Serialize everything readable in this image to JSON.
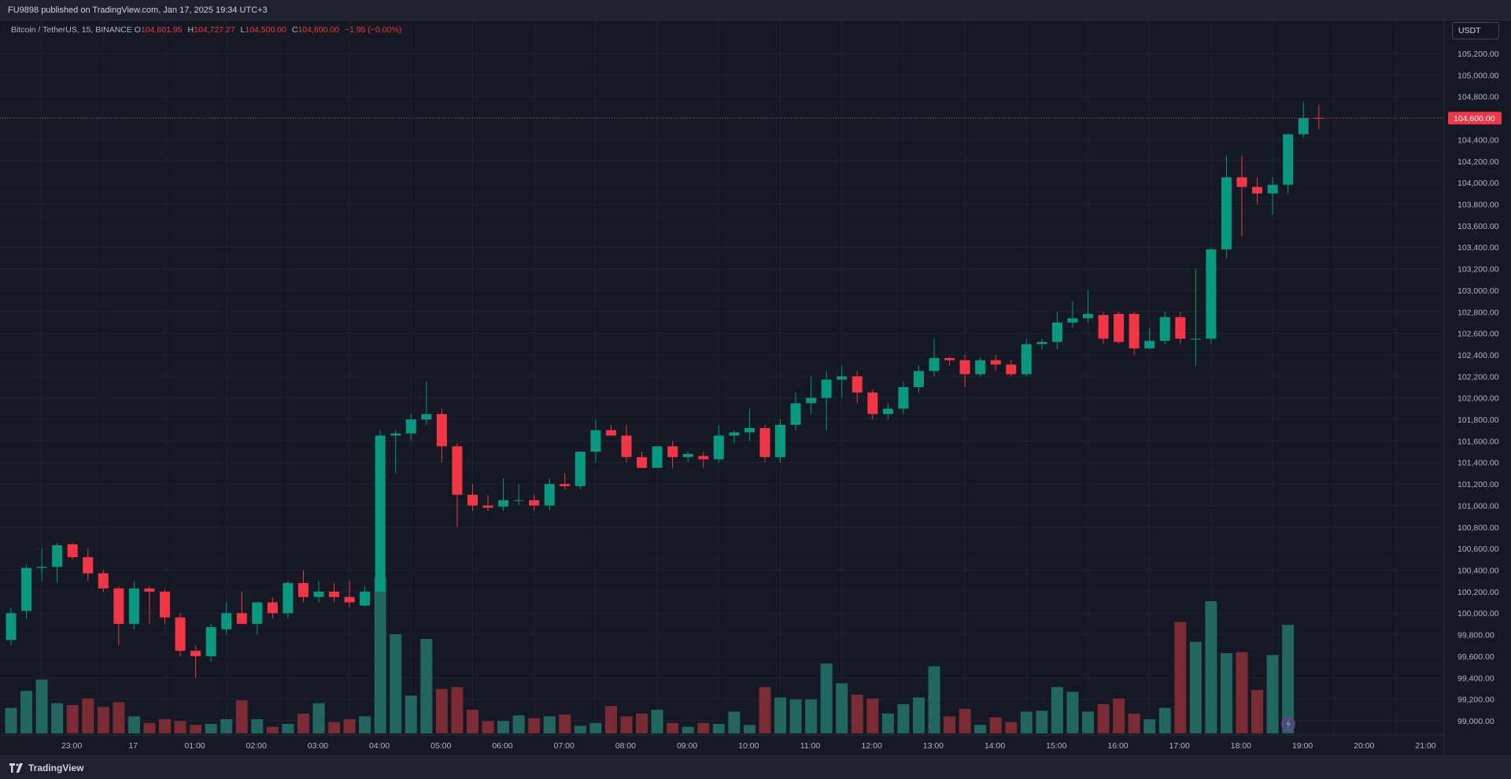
{
  "header": {
    "published_text": "FU9898 published on TradingView.com, Jan 17, 2025 19:34 UTC+3"
  },
  "legend": {
    "symbol": "Bitcoin / TetherUS, 15, BINANCE",
    "o_label": "O",
    "o_value": "104,601.95",
    "h_label": "H",
    "h_value": "104,727.27",
    "l_label": "L",
    "l_value": "104,500.00",
    "c_label": "C",
    "c_value": "104,600.00",
    "change": "−1.95 (−0.00%)"
  },
  "currency": "USDT",
  "footer": {
    "brand": "TradingView"
  },
  "current_price_label": "104,600.00",
  "colors": {
    "up": "#089981",
    "down": "#f23645",
    "volume_up": "#22675f",
    "volume_down": "#7a2b33"
  },
  "chart_data": {
    "type": "candlestick",
    "price_axis": {
      "min": 99000,
      "max": 105200,
      "step": 200,
      "labels": [
        "105,200.00",
        "105,000.00",
        "104,800.00",
        "104,600.00",
        "104,400.00",
        "104,200.00",
        "104,000.00",
        "103,800.00",
        "103,600.00",
        "103,400.00",
        "103,200.00",
        "103,000.00",
        "102,800.00",
        "102,600.00",
        "102,400.00",
        "102,200.00",
        "102,000.00",
        "101,800.00",
        "101,600.00",
        "101,400.00",
        "101,200.00",
        "101,000.00",
        "100,800.00",
        "100,600.00",
        "100,400.00",
        "100,200.00",
        "100,000.00",
        "99,800.00",
        "99,600.00",
        "99,400.00",
        "99,200.00",
        "99,000.00"
      ]
    },
    "time_axis": {
      "labels": [
        "23:00",
        "17",
        "01:00",
        "02:00",
        "03:00",
        "04:00",
        "05:00",
        "06:00",
        "07:00",
        "08:00",
        "09:00",
        "10:00",
        "11:00",
        "12:00",
        "13:00",
        "14:00",
        "15:00",
        "16:00",
        "17:00",
        "18:00",
        "19:00",
        "20:00",
        "21:00"
      ],
      "label_candle_index": [
        2,
        6,
        10,
        14,
        18,
        22,
        26,
        30,
        34,
        38,
        42,
        46,
        50,
        54,
        58,
        62,
        66,
        70,
        74,
        78,
        82,
        86,
        90
      ]
    },
    "last_price": 104600,
    "candles": [
      {
        "o": 99750,
        "h": 100050,
        "l": 99700,
        "c": 100000
      },
      {
        "o": 100020,
        "h": 100450,
        "l": 99950,
        "c": 100420
      },
      {
        "o": 100420,
        "h": 100600,
        "l": 100300,
        "c": 100430
      },
      {
        "o": 100430,
        "h": 100650,
        "l": 100280,
        "c": 100630
      },
      {
        "o": 100640,
        "h": 100650,
        "l": 100500,
        "c": 100520
      },
      {
        "o": 100520,
        "h": 100600,
        "l": 100300,
        "c": 100370
      },
      {
        "o": 100370,
        "h": 100400,
        "l": 100200,
        "c": 100230
      },
      {
        "o": 100230,
        "h": 100250,
        "l": 99700,
        "c": 99900
      },
      {
        "o": 99900,
        "h": 100300,
        "l": 99850,
        "c": 100230
      },
      {
        "o": 100230,
        "h": 100250,
        "l": 99900,
        "c": 100200
      },
      {
        "o": 100200,
        "h": 100220,
        "l": 99900,
        "c": 99960
      },
      {
        "o": 99960,
        "h": 100000,
        "l": 99600,
        "c": 99650
      },
      {
        "o": 99650,
        "h": 99700,
        "l": 99400,
        "c": 99600
      },
      {
        "o": 99600,
        "h": 99900,
        "l": 99550,
        "c": 99870
      },
      {
        "o": 99850,
        "h": 100100,
        "l": 99800,
        "c": 100000
      },
      {
        "o": 100000,
        "h": 100200,
        "l": 99950,
        "c": 99900
      },
      {
        "o": 99900,
        "h": 100100,
        "l": 99800,
        "c": 100100
      },
      {
        "o": 100100,
        "h": 100150,
        "l": 99950,
        "c": 100000
      },
      {
        "o": 100000,
        "h": 100300,
        "l": 99950,
        "c": 100280
      },
      {
        "o": 100280,
        "h": 100400,
        "l": 100100,
        "c": 100150
      },
      {
        "o": 100150,
        "h": 100300,
        "l": 100100,
        "c": 100200
      },
      {
        "o": 100200,
        "h": 100280,
        "l": 100100,
        "c": 100150
      },
      {
        "o": 100150,
        "h": 100300,
        "l": 100050,
        "c": 100100
      },
      {
        "o": 100070,
        "h": 100250,
        "l": 100060,
        "c": 100200
      },
      {
        "o": 100200,
        "h": 101700,
        "l": 100200,
        "c": 101650
      },
      {
        "o": 101650,
        "h": 101700,
        "l": 101300,
        "c": 101670
      },
      {
        "o": 101670,
        "h": 101850,
        "l": 101600,
        "c": 101800
      },
      {
        "o": 101800,
        "h": 102150,
        "l": 101750,
        "c": 101850
      },
      {
        "o": 101850,
        "h": 101900,
        "l": 101400,
        "c": 101550
      },
      {
        "o": 101550,
        "h": 101580,
        "l": 100800,
        "c": 101100
      },
      {
        "o": 101100,
        "h": 101200,
        "l": 100950,
        "c": 101000
      },
      {
        "o": 101000,
        "h": 101100,
        "l": 100950,
        "c": 100980
      },
      {
        "o": 100990,
        "h": 101250,
        "l": 100950,
        "c": 101050
      },
      {
        "o": 101050,
        "h": 101200,
        "l": 101000,
        "c": 101050
      },
      {
        "o": 101050,
        "h": 101100,
        "l": 100950,
        "c": 101000
      },
      {
        "o": 101000,
        "h": 101250,
        "l": 100950,
        "c": 101200
      },
      {
        "o": 101200,
        "h": 101300,
        "l": 101150,
        "c": 101180
      },
      {
        "o": 101180,
        "h": 101500,
        "l": 101150,
        "c": 101500
      },
      {
        "o": 101500,
        "h": 101800,
        "l": 101400,
        "c": 101700
      },
      {
        "o": 101700,
        "h": 101750,
        "l": 101650,
        "c": 101650
      },
      {
        "o": 101650,
        "h": 101750,
        "l": 101400,
        "c": 101450
      },
      {
        "o": 101450,
        "h": 101500,
        "l": 101350,
        "c": 101350
      },
      {
        "o": 101350,
        "h": 101550,
        "l": 101350,
        "c": 101550
      },
      {
        "o": 101550,
        "h": 101600,
        "l": 101350,
        "c": 101450
      },
      {
        "o": 101450,
        "h": 101500,
        "l": 101400,
        "c": 101480
      },
      {
        "o": 101460,
        "h": 101500,
        "l": 101350,
        "c": 101430
      },
      {
        "o": 101430,
        "h": 101750,
        "l": 101400,
        "c": 101650
      },
      {
        "o": 101650,
        "h": 101700,
        "l": 101580,
        "c": 101680
      },
      {
        "o": 101680,
        "h": 101900,
        "l": 101600,
        "c": 101720
      },
      {
        "o": 101720,
        "h": 101750,
        "l": 101400,
        "c": 101450
      },
      {
        "o": 101450,
        "h": 101800,
        "l": 101400,
        "c": 101750
      },
      {
        "o": 101750,
        "h": 102050,
        "l": 101700,
        "c": 101950
      },
      {
        "o": 101950,
        "h": 102200,
        "l": 101850,
        "c": 102000
      },
      {
        "o": 102000,
        "h": 102250,
        "l": 101700,
        "c": 102170
      },
      {
        "o": 102170,
        "h": 102300,
        "l": 102000,
        "c": 102200
      },
      {
        "o": 102200,
        "h": 102250,
        "l": 101950,
        "c": 102050
      },
      {
        "o": 102050,
        "h": 102080,
        "l": 101800,
        "c": 101850
      },
      {
        "o": 101850,
        "h": 101950,
        "l": 101800,
        "c": 101900
      },
      {
        "o": 101900,
        "h": 102150,
        "l": 101850,
        "c": 102100
      },
      {
        "o": 102100,
        "h": 102300,
        "l": 102050,
        "c": 102250
      },
      {
        "o": 102250,
        "h": 102550,
        "l": 102200,
        "c": 102370
      },
      {
        "o": 102370,
        "h": 102380,
        "l": 102300,
        "c": 102350
      },
      {
        "o": 102350,
        "h": 102400,
        "l": 102100,
        "c": 102220
      },
      {
        "o": 102220,
        "h": 102380,
        "l": 102200,
        "c": 102350
      },
      {
        "o": 102350,
        "h": 102400,
        "l": 102250,
        "c": 102310
      },
      {
        "o": 102310,
        "h": 102350,
        "l": 102200,
        "c": 102220
      },
      {
        "o": 102220,
        "h": 102550,
        "l": 102200,
        "c": 102500
      },
      {
        "o": 102500,
        "h": 102550,
        "l": 102450,
        "c": 102520
      },
      {
        "o": 102520,
        "h": 102800,
        "l": 102450,
        "c": 102700
      },
      {
        "o": 102700,
        "h": 102900,
        "l": 102650,
        "c": 102740
      },
      {
        "o": 102740,
        "h": 103000,
        "l": 102700,
        "c": 102780
      },
      {
        "o": 102770,
        "h": 102800,
        "l": 102500,
        "c": 102550
      },
      {
        "o": 102780,
        "h": 102800,
        "l": 102500,
        "c": 102520
      },
      {
        "o": 102780,
        "h": 102800,
        "l": 102400,
        "c": 102460
      },
      {
        "o": 102460,
        "h": 102650,
        "l": 102450,
        "c": 102530
      },
      {
        "o": 102530,
        "h": 102800,
        "l": 102500,
        "c": 102750
      },
      {
        "o": 102750,
        "h": 102800,
        "l": 102500,
        "c": 102550
      },
      {
        "o": 102550,
        "h": 103200,
        "l": 102300,
        "c": 102550
      },
      {
        "o": 102550,
        "h": 103400,
        "l": 102500,
        "c": 103380
      },
      {
        "o": 103380,
        "h": 104250,
        "l": 103300,
        "c": 104050
      },
      {
        "o": 104050,
        "h": 104250,
        "l": 103500,
        "c": 103960
      },
      {
        "o": 103960,
        "h": 104050,
        "l": 103800,
        "c": 103900
      },
      {
        "o": 103900,
        "h": 104050,
        "l": 103700,
        "c": 103980
      },
      {
        "o": 103980,
        "h": 104450,
        "l": 103900,
        "c": 104450
      },
      {
        "o": 104450,
        "h": 104750,
        "l": 104420,
        "c": 104600
      },
      {
        "o": 104601.95,
        "h": 104727.27,
        "l": 104500,
        "c": 104600
      }
    ],
    "volumes": [
      0.27,
      0.45,
      0.57,
      0.32,
      0.3,
      0.37,
      0.28,
      0.33,
      0.18,
      0.11,
      0.15,
      0.13,
      0.09,
      0.1,
      0.15,
      0.35,
      0.15,
      0.07,
      0.1,
      0.21,
      0.32,
      0.12,
      0.15,
      0.18,
      1.65,
      1.05,
      0.4,
      1.0,
      0.47,
      0.49,
      0.25,
      0.13,
      0.13,
      0.19,
      0.16,
      0.18,
      0.2,
      0.08,
      0.11,
      0.29,
      0.18,
      0.21,
      0.25,
      0.11,
      0.07,
      0.11,
      0.1,
      0.23,
      0.09,
      0.49,
      0.38,
      0.36,
      0.36,
      0.74,
      0.53,
      0.41,
      0.37,
      0.21,
      0.31,
      0.38,
      0.71,
      0.18,
      0.26,
      0.09,
      0.17,
      0.12,
      0.23,
      0.24,
      0.49,
      0.44,
      0.23,
      0.31,
      0.37,
      0.21,
      0.15,
      0.27,
      1.18,
      0.97,
      1.4,
      0.85,
      0.86,
      0.46,
      0.83,
      1.15
    ]
  }
}
